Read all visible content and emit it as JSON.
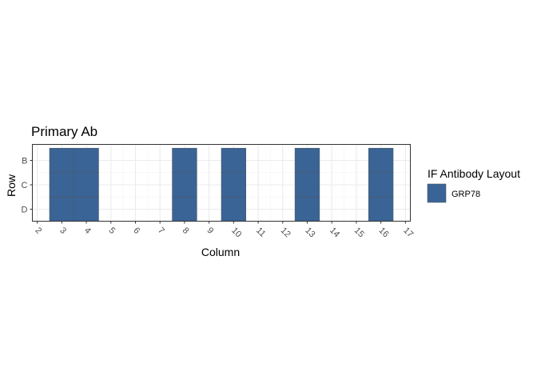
{
  "chart_data": {
    "type": "heatmap",
    "title": "Primary Ab",
    "xlabel": "Column",
    "ylabel": "Row",
    "x_ticks": [
      "2",
      "3",
      "4",
      "5",
      "6",
      "7",
      "8",
      "9",
      "10",
      "11",
      "12",
      "13",
      "14",
      "15",
      "16",
      "17"
    ],
    "y_ticks": [
      "B",
      "C",
      "D"
    ],
    "xlim": [
      2,
      17
    ],
    "grid": true,
    "legend": {
      "title": "IF Antibody Layout",
      "position": "right",
      "entries": [
        {
          "label": "GRP78",
          "color": "#3a6496"
        }
      ]
    },
    "cells": [
      {
        "column": 3,
        "row": "B",
        "antibody": "GRP78"
      },
      {
        "column": 3,
        "row": "C",
        "antibody": "GRP78"
      },
      {
        "column": 3,
        "row": "D",
        "antibody": "GRP78"
      },
      {
        "column": 4,
        "row": "B",
        "antibody": "GRP78"
      },
      {
        "column": 4,
        "row": "C",
        "antibody": "GRP78"
      },
      {
        "column": 4,
        "row": "D",
        "antibody": "GRP78"
      },
      {
        "column": 8,
        "row": "B",
        "antibody": "GRP78"
      },
      {
        "column": 8,
        "row": "C",
        "antibody": "GRP78"
      },
      {
        "column": 8,
        "row": "D",
        "antibody": "GRP78"
      },
      {
        "column": 10,
        "row": "B",
        "antibody": "GRP78"
      },
      {
        "column": 10,
        "row": "C",
        "antibody": "GRP78"
      },
      {
        "column": 10,
        "row": "D",
        "antibody": "GRP78"
      },
      {
        "column": 13,
        "row": "B",
        "antibody": "GRP78"
      },
      {
        "column": 13,
        "row": "C",
        "antibody": "GRP78"
      },
      {
        "column": 13,
        "row": "D",
        "antibody": "GRP78"
      },
      {
        "column": 16,
        "row": "B",
        "antibody": "GRP78"
      },
      {
        "column": 16,
        "row": "C",
        "antibody": "GRP78"
      },
      {
        "column": 16,
        "row": "D",
        "antibody": "GRP78"
      }
    ],
    "colors": {
      "fill": "#3a6496",
      "tile_border": "#4d5a68",
      "grid": "#ebebeb",
      "panel_border": "#333333"
    }
  }
}
